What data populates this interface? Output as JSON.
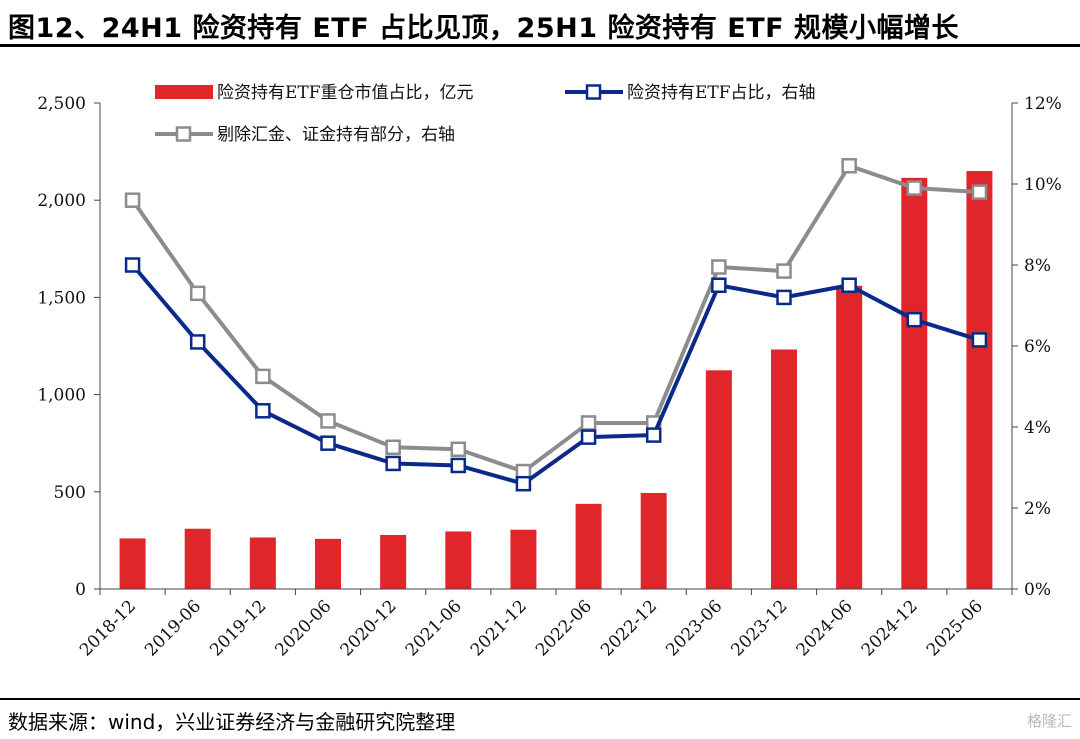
{
  "figure": {
    "title": "图12、24H1 险资持有 ETF 占比见顶，25H1 险资持有 ETF 规模小幅增长",
    "source": "数据来源：wind，兴业证券经济与金融研究院整理",
    "watermark": "格隆汇"
  },
  "chart_data": {
    "type": "bar",
    "categories": [
      "2018-12",
      "2019-06",
      "2019-12",
      "2020-06",
      "2020-12",
      "2021-06",
      "2021-12",
      "2022-06",
      "2022-12",
      "2023-06",
      "2023-12",
      "2024-06",
      "2024-12",
      "2025-06"
    ],
    "series": [
      {
        "name": "险资持有ETF重仓市值占比，亿元",
        "kind": "bar",
        "axis": "left",
        "color": "#e0262b",
        "values": [
          260,
          310,
          265,
          258,
          278,
          296,
          305,
          438,
          494,
          1125,
          1232,
          1560,
          2115,
          2150
        ]
      },
      {
        "name": "险资持有ETF占比，右轴",
        "kind": "line",
        "axis": "right",
        "color": "#0a2a8a",
        "values": [
          8.0,
          6.1,
          4.4,
          3.6,
          3.1,
          3.05,
          2.6,
          3.75,
          3.8,
          7.5,
          7.2,
          7.5,
          6.65,
          6.15
        ]
      },
      {
        "name": "剔除汇金、证金持有部分，右轴",
        "kind": "line",
        "axis": "right",
        "color": "#8c8c8c",
        "values": [
          9.6,
          7.3,
          5.25,
          4.15,
          3.5,
          3.45,
          2.9,
          4.1,
          4.1,
          7.95,
          7.85,
          10.45,
          9.9,
          9.8
        ]
      }
    ],
    "left_axis": {
      "ylim": [
        0,
        2500
      ],
      "ticks": [
        "0",
        "500",
        "1,000",
        "1,500",
        "2,000",
        "2,500"
      ]
    },
    "right_axis": {
      "ylim": [
        0,
        12
      ],
      "ticks": [
        "0%",
        "2%",
        "4%",
        "6%",
        "8%",
        "10%",
        "12%"
      ]
    },
    "grid": false,
    "legend_position": "top"
  }
}
